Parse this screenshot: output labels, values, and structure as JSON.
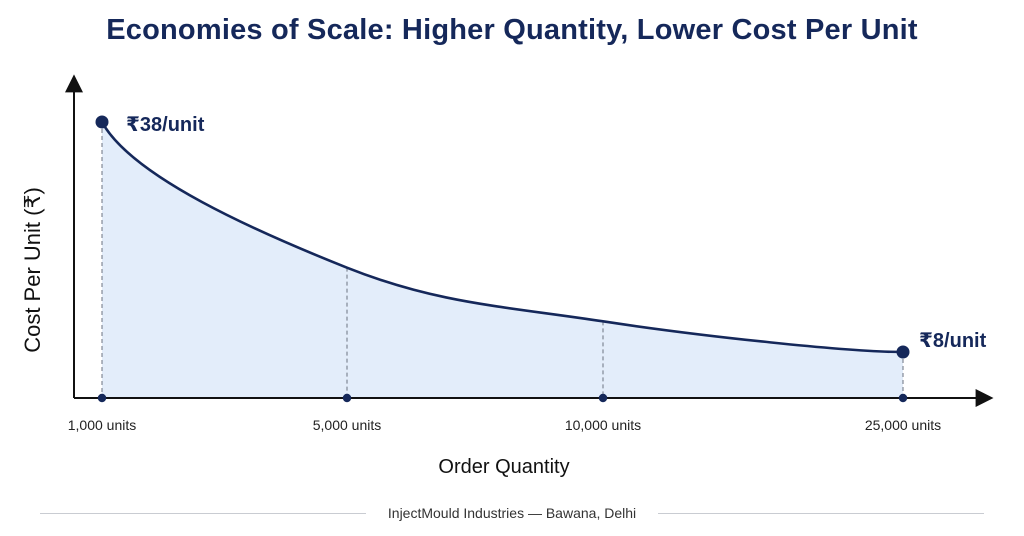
{
  "chart_data": {
    "type": "area",
    "title": "Economies of Scale: Higher Quantity, Lower Cost Per Unit",
    "xlabel": "Order Quantity",
    "ylabel": "Cost Per Unit (₹)",
    "x_ticks": [
      "1,000 units",
      "5,000 units",
      "10,000 units",
      "25,000 units"
    ],
    "series": [
      {
        "x": [
          "1,000 units",
          "5,000 units",
          "10,000 units",
          "25,000 units"
        ],
        "values": [
          38,
          19,
          12,
          8
        ]
      }
    ],
    "annotations": [
      {
        "at": "1,000 units",
        "text": "₹38/unit"
      },
      {
        "at": "25,000 units",
        "text": "₹8/unit"
      }
    ],
    "grid": false,
    "colors": {
      "line": "#15285a",
      "fill": "#e3edfa",
      "text": "#15285a",
      "axis": "#111111"
    }
  },
  "footer": "InjectMould Industries — Bawana, Delhi"
}
